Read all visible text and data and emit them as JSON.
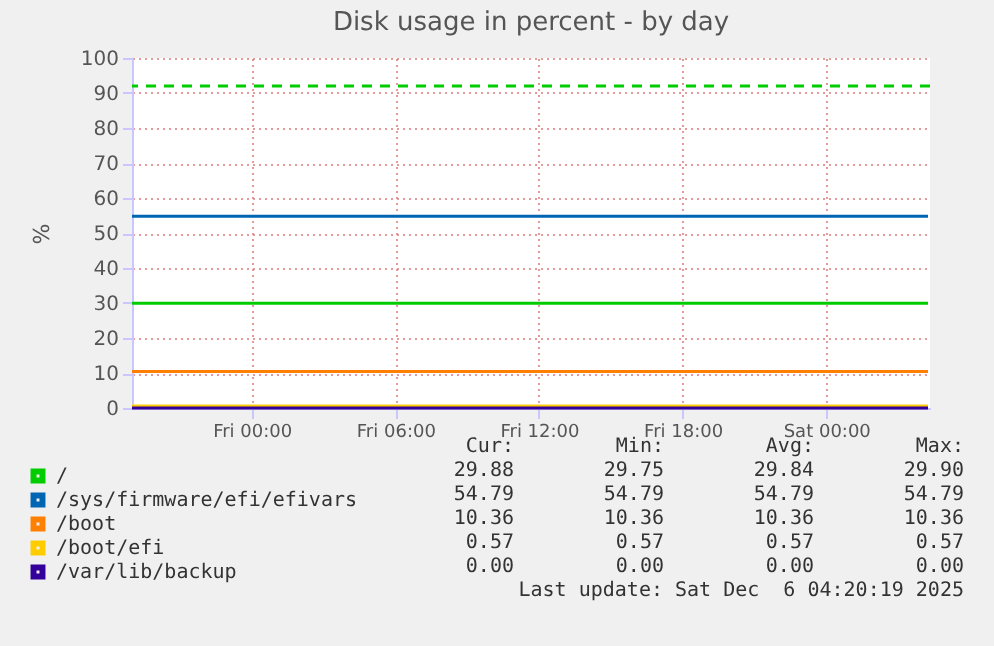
{
  "chart_data": {
    "type": "line",
    "title": "Disk usage in percent - by day",
    "ylabel": "%",
    "x": [
      "2025-12-04T19:00",
      "2025-12-06T04:15"
    ],
    "series": [
      {
        "name": "/",
        "color": "#00cc00",
        "values": [
          29.9,
          29.9
        ]
      },
      {
        "name": "/sys/firmware/efi/efivars",
        "color": "#0066b3",
        "values": [
          54.8,
          54.8
        ]
      },
      {
        "name": "/boot",
        "color": "#ff8000",
        "values": [
          10.4,
          10.4
        ]
      },
      {
        "name": "/boot/efi",
        "color": "#ffcc00",
        "values": [
          0.6,
          0.6
        ]
      },
      {
        "name": "/var/lib/backup",
        "color": "#330099",
        "values": [
          0,
          0
        ]
      }
    ],
    "xlim": [
      "2025-12-04T19:00",
      "2025-12-06T04:20"
    ],
    "xticks": [
      {
        "value": "2025-12-05T00:00",
        "label": "Fri 00:00"
      },
      {
        "value": "2025-12-05T06:00",
        "label": "Fri 06:00"
      },
      {
        "value": "2025-12-05T12:00",
        "label": "Fri 12:00"
      },
      {
        "value": "2025-12-05T18:00",
        "label": "Fri 18:00"
      },
      {
        "value": "2025-12-06T00:00",
        "label": "Sat 00:00"
      }
    ],
    "ylim": [
      0,
      100
    ],
    "yticks": [
      0,
      10,
      20,
      30,
      40,
      50,
      60,
      70,
      80,
      90,
      100
    ],
    "ref_lines": [
      {
        "axis": "y",
        "value": 92,
        "color": "#00cc00",
        "line_style": "dashed"
      }
    ],
    "grid": true,
    "legend": "bottom",
    "annotations": [
      "Cur:",
      "Min:",
      "Avg:",
      "Max:",
      "29.88",
      "29.75",
      "29.84",
      "29.90",
      "54.79",
      "54.79",
      "54.79",
      "54.79",
      "10.36",
      "10.36",
      "10.36",
      "10.36",
      "0.57",
      "0.57",
      "0.57",
      "0.57",
      "0.00",
      "0.00",
      "0.00",
      "0.00",
      "Last update: Sat Dec  6 04:20:19 2025"
    ]
  }
}
